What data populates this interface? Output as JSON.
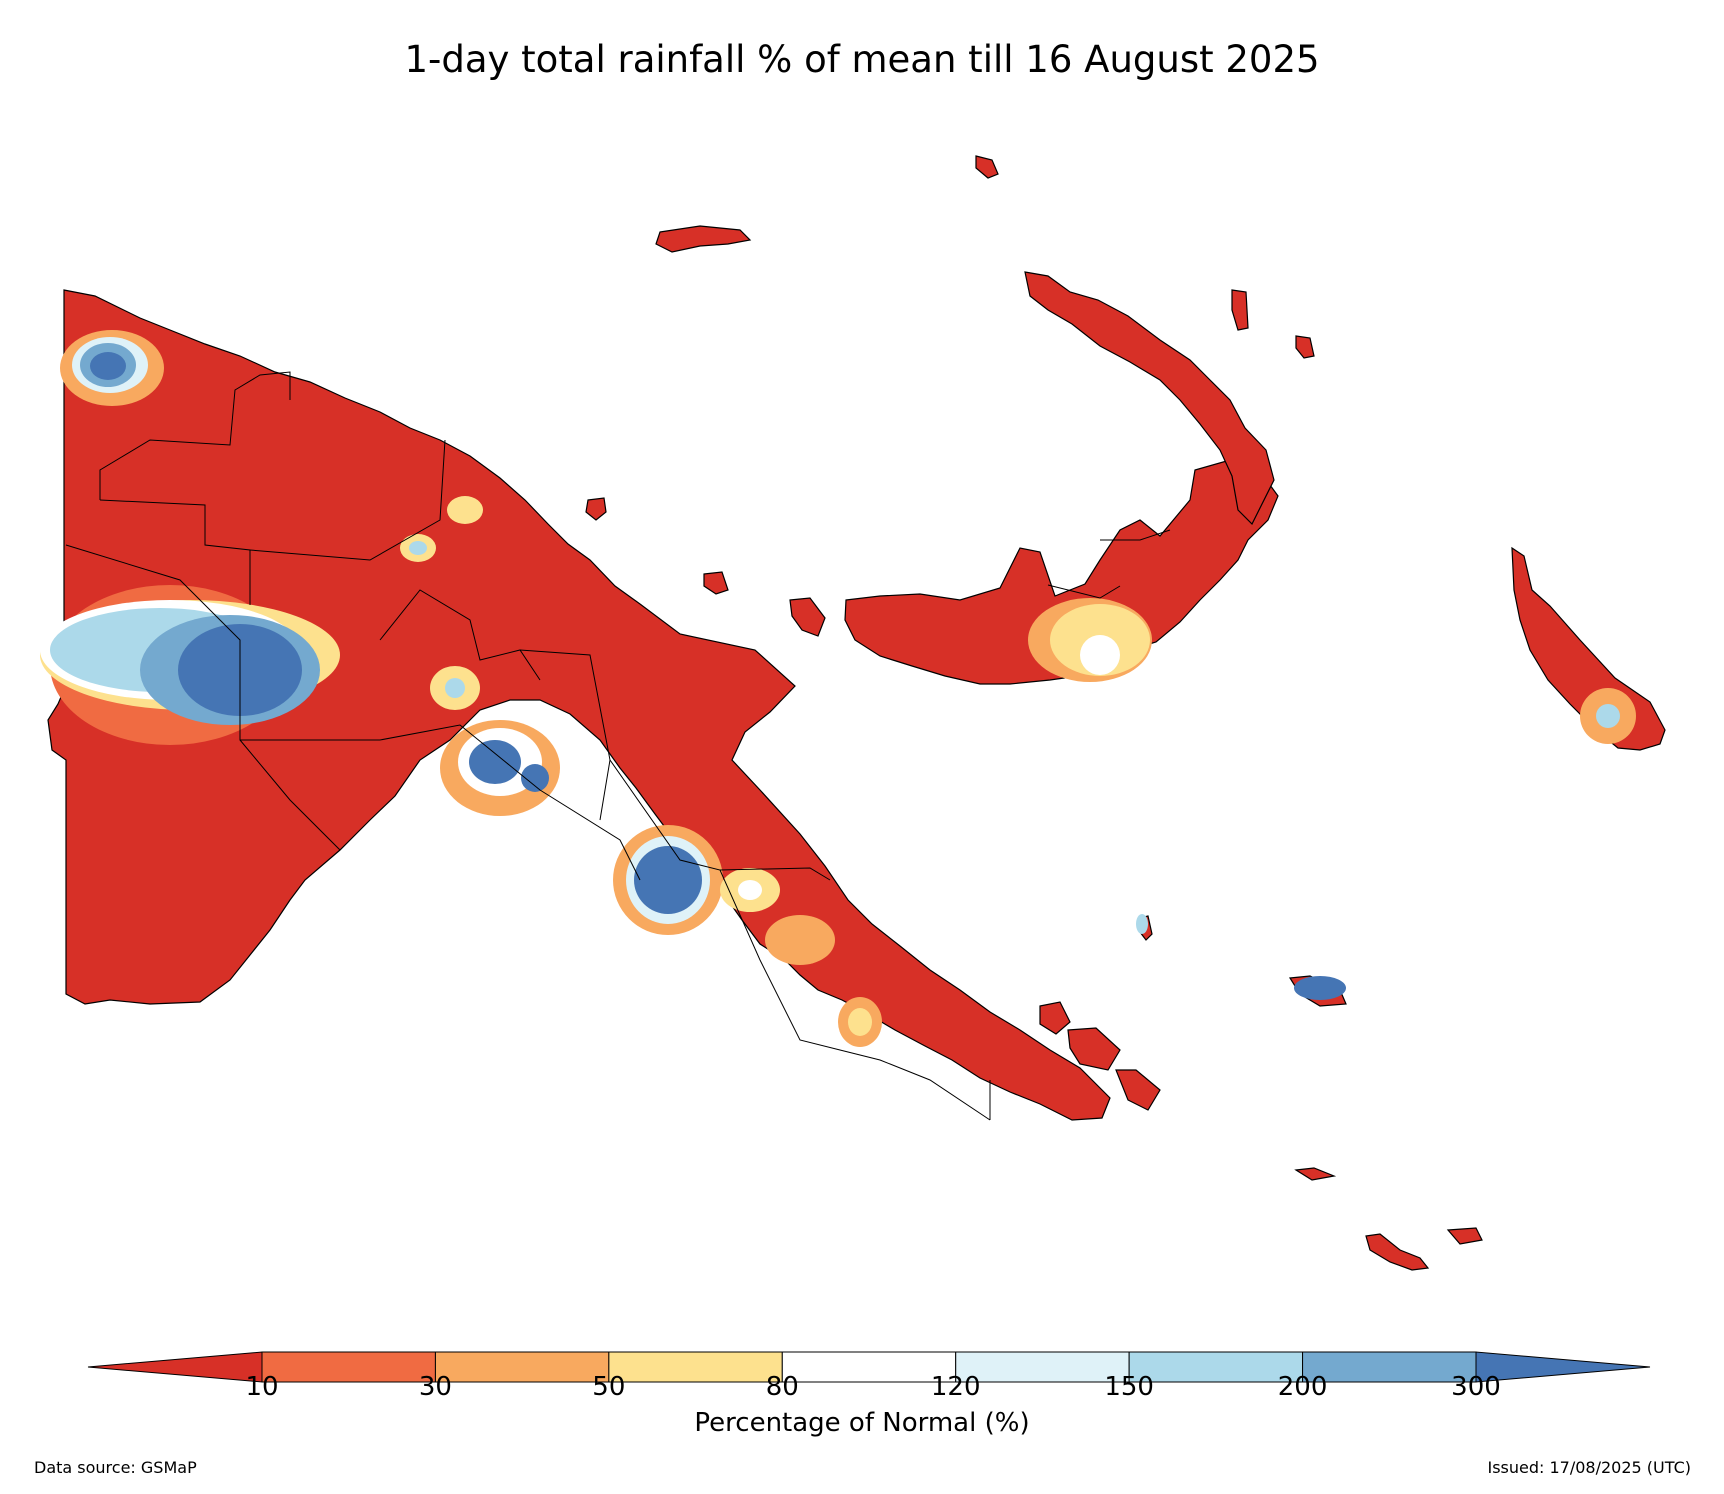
{
  "title": "1-day total rainfall % of mean till 16 August 2025",
  "colorbar": {
    "label": "Percentage of Normal (%)",
    "ticks": [
      "10",
      "30",
      "50",
      "80",
      "120",
      "150",
      "200",
      "300"
    ],
    "bins": [
      {
        "range": "<10",
        "color": "#d73027"
      },
      {
        "range": "10-30",
        "color": "#f06b42"
      },
      {
        "range": "30-50",
        "color": "#f8a95f"
      },
      {
        "range": "50-80",
        "color": "#fde18e"
      },
      {
        "range": "80-120",
        "color": "#ffffff"
      },
      {
        "range": "120-150",
        "color": "#dff2f8"
      },
      {
        "range": "150-200",
        "color": "#acd9ea"
      },
      {
        "range": "200-300",
        "color": "#74a9cf"
      },
      {
        "range": ">300",
        "color": "#4575b4"
      }
    ],
    "extend": "both"
  },
  "footer": {
    "source": "Data source: GSMaP",
    "issued": "Issued: 17/08/2025 (UTC)"
  },
  "map": {
    "region": "Papua New Guinea",
    "dominant_category": "<10",
    "wet_anomaly_areas": [
      "western highlands",
      "northern coast west",
      "southern highlands",
      "central range",
      "Bougainville south",
      "Guadalcanal-east island"
    ]
  }
}
